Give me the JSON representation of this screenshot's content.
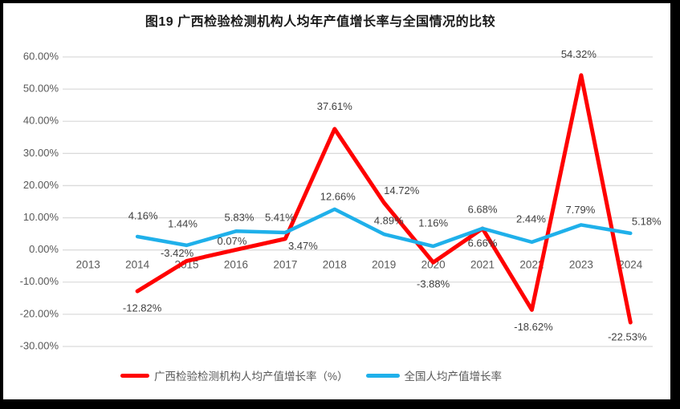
{
  "title": "图19 广西检验检测机构人均年产值增长率与全国情况的比较",
  "chart_data": {
    "type": "line",
    "categories": [
      "2013",
      "2014",
      "2015",
      "2016",
      "2017",
      "2018",
      "2019",
      "2020",
      "2021",
      "2022",
      "2023",
      "2024"
    ],
    "series": [
      {
        "name": "广西检验检测机构人均产值增长率（%）",
        "color": "#FF0000",
        "values": [
          null,
          -12.82,
          -3.42,
          0.07,
          3.47,
          37.61,
          14.72,
          -3.88,
          6.66,
          -18.62,
          54.32,
          -22.53
        ]
      },
      {
        "name": "全国人均产值增长率",
        "color": "#1FB0EA",
        "values": [
          null,
          4.16,
          1.44,
          5.83,
          5.41,
          12.66,
          4.89,
          1.16,
          6.68,
          2.44,
          7.79,
          5.18
        ]
      }
    ],
    "y_ticks": [
      "60.00%",
      "50.00%",
      "40.00%",
      "30.00%",
      "20.00%",
      "10.00%",
      "0.00%",
      "-10.00%",
      "-20.00%",
      "-30.00%"
    ],
    "ylim": [
      -30,
      60
    ],
    "ytick_step": 10,
    "data_label_format": "0.00%",
    "grid": true,
    "legend_position": "bottom",
    "colors": {
      "gridline": "#DBDBDB",
      "axis_text": "#595959",
      "data_label_text": "#404040",
      "frame_border": "#000000",
      "plot_background": "#FFFFFF"
    }
  }
}
